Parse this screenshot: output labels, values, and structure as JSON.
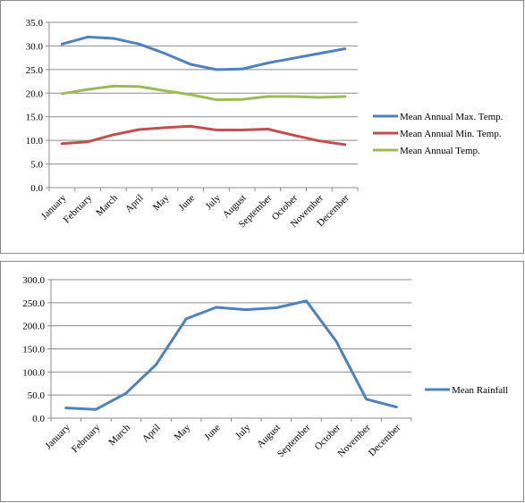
{
  "chart_data": [
    {
      "type": "line",
      "title": "",
      "xlabel": "",
      "ylabel": "",
      "categories": [
        "January",
        "February",
        "March",
        "April",
        "May",
        "June",
        "July",
        "August",
        "September",
        "October",
        "November",
        "December"
      ],
      "ylim": [
        0,
        35
      ],
      "ytick_step": 5,
      "ytick_labels": [
        "0.0",
        "5.0",
        "10.0",
        "15.0",
        "20.0",
        "25.0",
        "30.0",
        "35.0"
      ],
      "grid": true,
      "legend_position": "right",
      "series": [
        {
          "name": "Mean Annual Max. Temp.",
          "color": "#4f81bd",
          "values": [
            30.4,
            31.9,
            31.6,
            30.4,
            28.4,
            26.1,
            25.0,
            25.1,
            26.4,
            27.4,
            28.4,
            29.4
          ]
        },
        {
          "name": "Mean Annual Min. Temp.",
          "color": "#c0504d",
          "values": [
            9.3,
            9.7,
            11.2,
            12.3,
            12.7,
            13.0,
            12.2,
            12.2,
            12.4,
            11.1,
            9.9,
            9.1
          ]
        },
        {
          "name": "Mean Annual Temp.",
          "color": "#9bbb59",
          "values": [
            19.9,
            20.8,
            21.5,
            21.4,
            20.5,
            19.7,
            18.6,
            18.7,
            19.3,
            19.3,
            19.1,
            19.3
          ]
        }
      ]
    },
    {
      "type": "line",
      "title": "",
      "xlabel": "",
      "ylabel": "",
      "categories": [
        "January",
        "February",
        "March",
        "April",
        "May",
        "June",
        "July",
        "August",
        "September",
        "October",
        "November",
        "December"
      ],
      "ylim": [
        0,
        300
      ],
      "ytick_step": 50,
      "ytick_labels": [
        "0.0",
        "50.0",
        "100.0",
        "150.0",
        "200.0",
        "250.0",
        "300.0"
      ],
      "grid": true,
      "legend_position": "right",
      "series": [
        {
          "name": "Mean Rainfall",
          "color": "#4f81bd",
          "values": [
            22,
            19,
            54,
            116,
            215,
            240,
            235,
            239,
            254,
            166,
            41,
            24
          ]
        }
      ]
    }
  ]
}
